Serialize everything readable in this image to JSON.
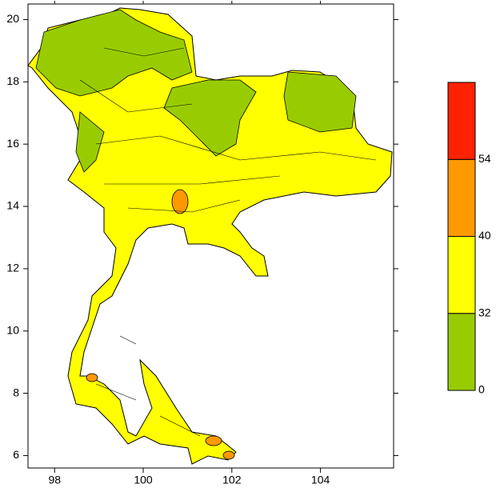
{
  "map": {
    "xlim": [
      97.4,
      105.65
    ],
    "ylim": [
      5.6,
      20.5
    ],
    "xticks": [
      98,
      100,
      102,
      104
    ],
    "yticks": [
      6,
      8,
      10,
      12,
      14,
      16,
      18,
      20
    ],
    "legend": {
      "levels": [
        0,
        32,
        40,
        54
      ],
      "colors": [
        "#99cc00",
        "#ffff00",
        "#ff9900",
        "#ff2200"
      ]
    }
  }
}
